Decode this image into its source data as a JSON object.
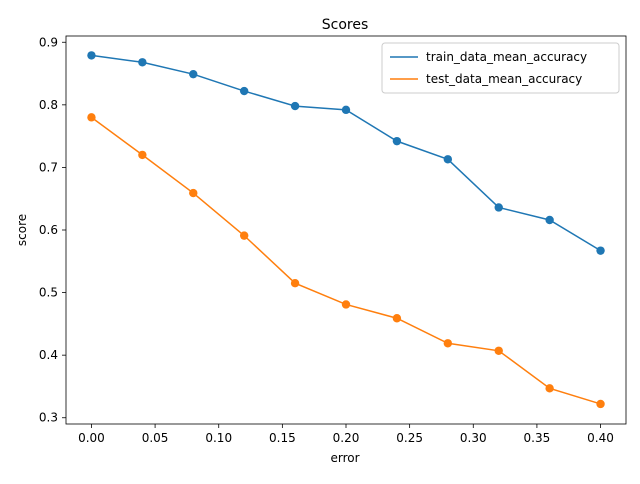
{
  "chart_data": {
    "type": "line",
    "title": "Scores",
    "xlabel": "error",
    "ylabel": "score",
    "xlim": [
      -0.02,
      0.42
    ],
    "ylim": [
      0.29,
      0.91
    ],
    "xticks": [
      0.0,
      0.05,
      0.1,
      0.15,
      0.2,
      0.25,
      0.3,
      0.35,
      0.4
    ],
    "xtick_labels": [
      "0.00",
      "0.05",
      "0.10",
      "0.15",
      "0.20",
      "0.25",
      "0.30",
      "0.35",
      "0.40"
    ],
    "yticks": [
      0.3,
      0.4,
      0.5,
      0.6,
      0.7,
      0.8,
      0.9
    ],
    "ytick_labels": [
      "0.3",
      "0.4",
      "0.5",
      "0.6",
      "0.7",
      "0.8",
      "0.9"
    ],
    "grid": false,
    "legend_position": "top-right",
    "x": [
      0.0,
      0.04,
      0.08,
      0.12,
      0.16,
      0.2,
      0.24,
      0.28,
      0.32,
      0.36,
      0.4
    ],
    "series": [
      {
        "name": "train_data_mean_accuracy",
        "color": "#1f77b4",
        "values": [
          0.879,
          0.868,
          0.849,
          0.822,
          0.798,
          0.792,
          0.742,
          0.713,
          0.636,
          0.616,
          0.567
        ]
      },
      {
        "name": "test_data_mean_accuracy",
        "color": "#ff7f0e",
        "values": [
          0.78,
          0.72,
          0.659,
          0.591,
          0.515,
          0.481,
          0.459,
          0.419,
          0.407,
          0.347,
          0.322
        ]
      }
    ]
  }
}
